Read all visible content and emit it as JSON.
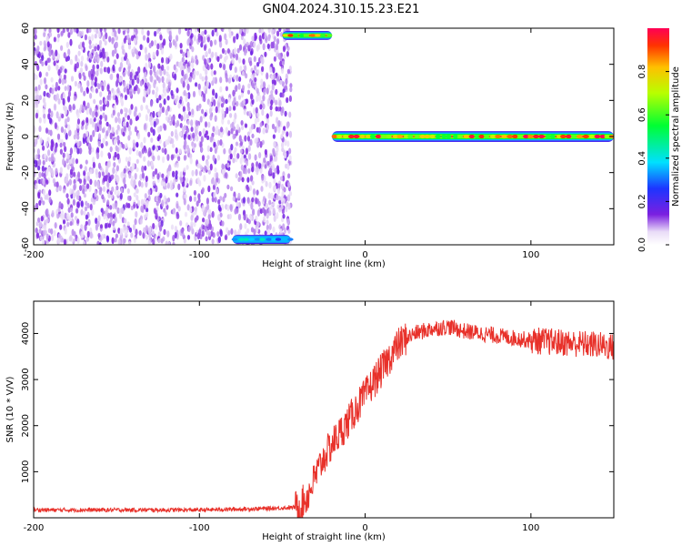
{
  "title": "GN04.2024.310.15.23.E21",
  "chart_data": [
    {
      "type": "heatmap",
      "xlabel": "Height of straight line (km)",
      "ylabel": "Frequency (Hz)",
      "xlim": [
        -200,
        150
      ],
      "ylim": [
        -60,
        60
      ],
      "x_ticks": [
        -200,
        -100,
        0,
        100
      ],
      "y_ticks": [
        -60,
        -40,
        -20,
        0,
        20,
        40,
        60
      ],
      "colorbar": {
        "label": "Normalized spectral amplitude",
        "range": [
          0.0,
          1.0
        ],
        "ticks": [
          0.0,
          0.2,
          0.4,
          0.6,
          0.8
        ]
      },
      "features": [
        {
          "kind": "noise",
          "x_range": [
            -200,
            -48
          ],
          "y_range": [
            -60,
            60
          ],
          "amplitude": 0.1
        },
        {
          "kind": "band",
          "x_range": [
            -20,
            150
          ],
          "y_center": 0,
          "y_halfwidth": 3,
          "amplitude_peak": 1.0
        },
        {
          "kind": "band",
          "x_range": [
            -50,
            -20
          ],
          "y_center": 56,
          "y_halfwidth": 2.5,
          "amplitude_peak": 1.0
        },
        {
          "kind": "band",
          "x_range": [
            -80,
            -45
          ],
          "y_center": -57,
          "y_halfwidth": 2.5,
          "amplitude_peak": 0.4
        }
      ]
    },
    {
      "type": "line",
      "xlabel": "Height of straight line (km)",
      "ylabel": "SNR (10 * V/V)",
      "xlim": [
        -200,
        150
      ],
      "ylim": [
        0,
        4700
      ],
      "x_ticks": [
        -200,
        -100,
        0,
        100
      ],
      "y_ticks": [
        1000,
        2000,
        3000,
        4000
      ],
      "color": "#e8312a",
      "series": [
        {
          "x": [
            -200,
            -150,
            -100,
            -60,
            -40,
            -35,
            -30,
            -25,
            -20,
            -15,
            -10,
            -5,
            0,
            5,
            10,
            15,
            20,
            25,
            30,
            40,
            50,
            60,
            80,
            100,
            120,
            140,
            150
          ],
          "y": [
            170,
            170,
            170,
            200,
            230,
            450,
            900,
            1300,
            1600,
            1850,
            2100,
            2400,
            2650,
            2950,
            3200,
            3500,
            3750,
            3900,
            4000,
            4100,
            4150,
            4050,
            3950,
            3850,
            3800,
            3750,
            3700
          ]
        }
      ]
    }
  ]
}
